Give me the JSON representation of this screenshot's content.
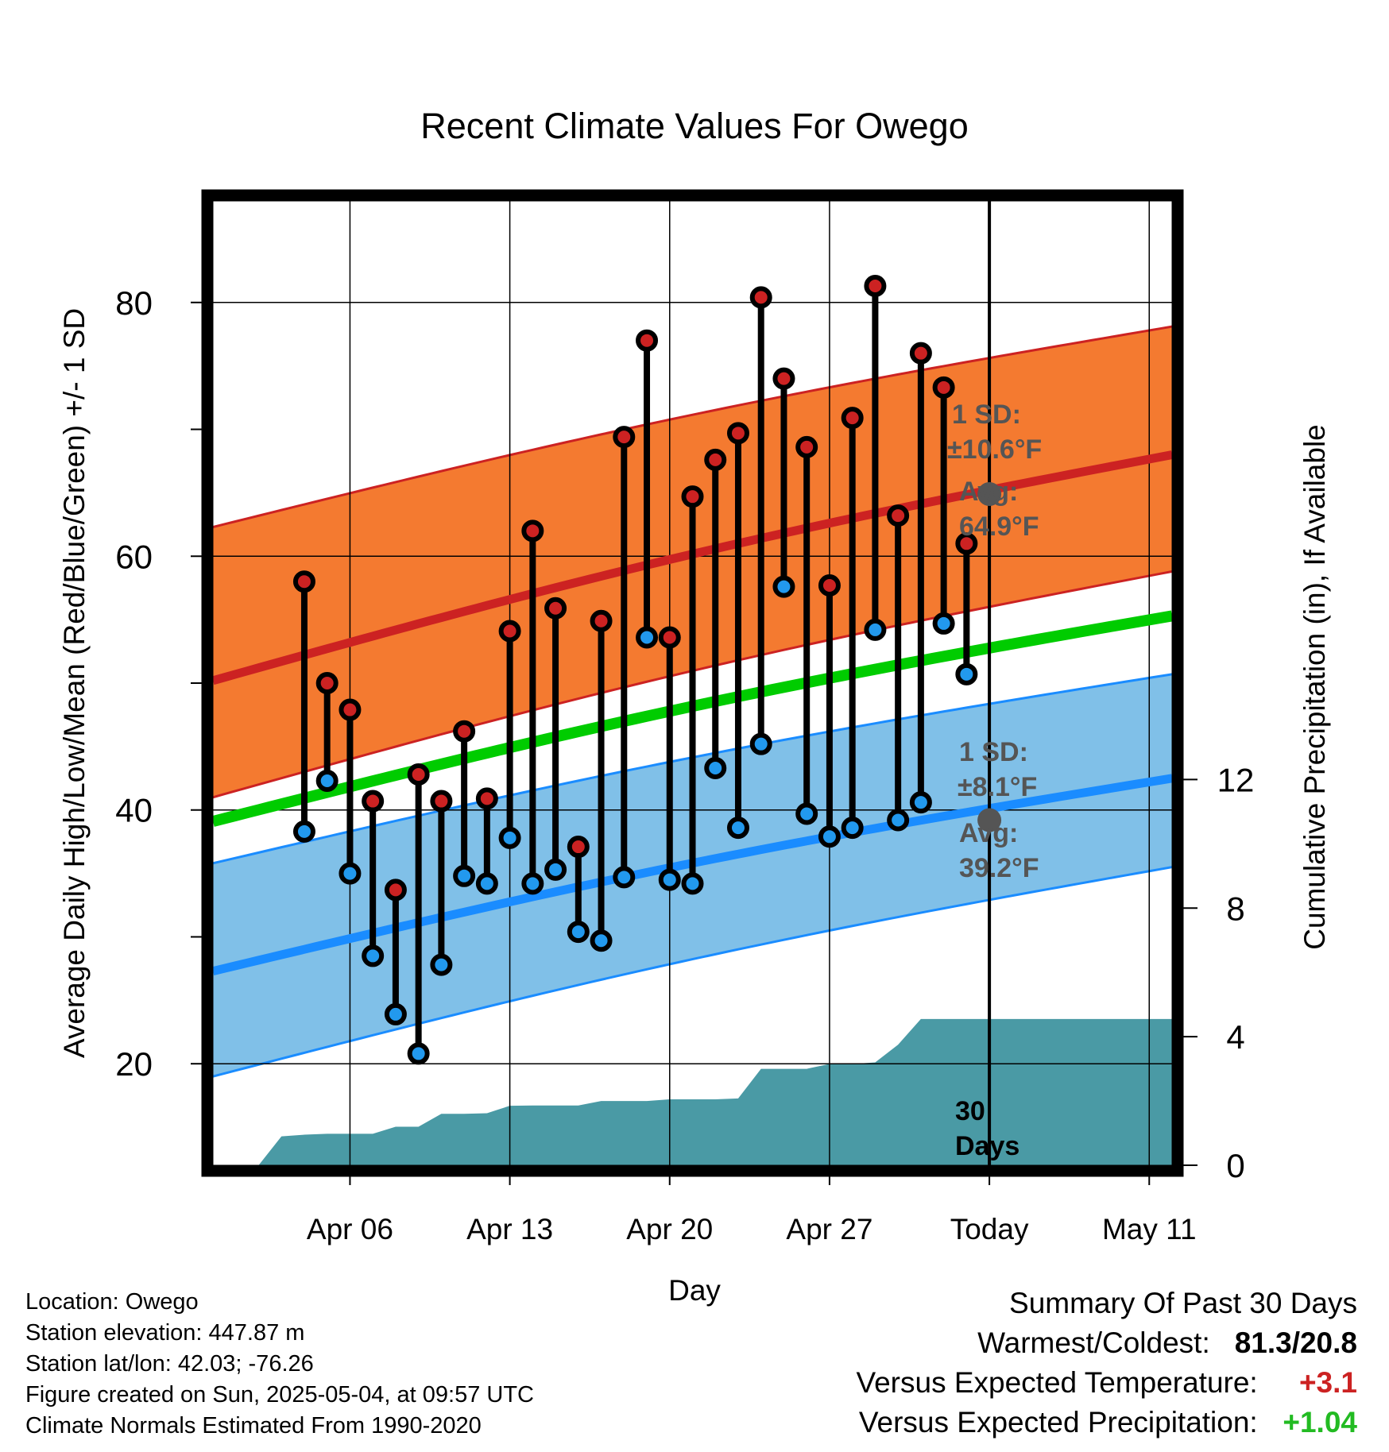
{
  "chart_data": {
    "type": "line",
    "title": "Recent Climate Values For Owego",
    "xlabel": "Day",
    "ylabel": "Average Daily High/Low/Mean (Red/Blue/Green) +/- 1 SD",
    "y2label": "Cumulative Precipitation (in), If Available",
    "x_range_days": [
      -1,
      41
    ],
    "ylim": [
      12,
      88
    ],
    "y2lim": [
      0,
      30
    ],
    "x_ticks": [
      {
        "day": 5,
        "label": "Apr 06"
      },
      {
        "day": 12,
        "label": "Apr 13"
      },
      {
        "day": 19,
        "label": "Apr 20"
      },
      {
        "day": 26,
        "label": "Apr 27"
      },
      {
        "day": 33,
        "label": "Today"
      },
      {
        "day": 40,
        "label": "May 11"
      }
    ],
    "y_ticks": [
      {
        "value": 20,
        "label": "20"
      },
      {
        "value": 30,
        "label": ""
      },
      {
        "value": 40,
        "label": "40"
      },
      {
        "value": 50,
        "label": ""
      },
      {
        "value": 60,
        "label": "60"
      },
      {
        "value": 70,
        "label": ""
      },
      {
        "value": 80,
        "label": "80"
      }
    ],
    "y2_ticks": [
      {
        "value": 0,
        "label": "0"
      },
      {
        "value": 4,
        "label": "4"
      },
      {
        "value": 8,
        "label": "8"
      },
      {
        "value": 12,
        "label": "12"
      }
    ],
    "today_day": 33,
    "daily_observations": {
      "day": [
        3,
        4,
        5,
        6,
        7,
        8,
        9,
        10,
        11,
        12,
        13,
        14,
        15,
        16,
        17,
        18,
        19,
        20,
        21,
        22,
        23,
        24,
        25,
        26,
        27,
        28,
        29,
        30,
        31,
        32
      ],
      "high": [
        58.0,
        50.0,
        47.9,
        40.7,
        33.7,
        42.8,
        40.7,
        46.2,
        40.9,
        54.1,
        62.0,
        55.9,
        37.1,
        54.9,
        69.4,
        77.0,
        53.6,
        64.7,
        67.6,
        69.7,
        80.4,
        74.0,
        68.6,
        57.7,
        70.9,
        81.3,
        63.2,
        76.0,
        73.3,
        61.0
      ],
      "low": [
        38.3,
        42.3,
        35.0,
        28.5,
        23.9,
        20.8,
        27.8,
        34.8,
        34.2,
        37.8,
        34.2,
        35.3,
        30.4,
        29.7,
        34.7,
        53.6,
        34.5,
        34.2,
        43.3,
        38.6,
        45.2,
        57.6,
        39.7,
        37.9,
        38.6,
        54.2,
        39.2,
        40.6,
        54.7,
        50.7
      ]
    },
    "normals": {
      "day": [
        -1,
        41
      ],
      "avg_high": [
        50.2,
        68.0
      ],
      "avg_high_plus_sd": [
        62.3,
        78.1
      ],
      "avg_high_minus_sd": [
        41.0,
        58.8
      ],
      "avg_mean": [
        39.1,
        55.3
      ],
      "avg_low": [
        27.3,
        42.5
      ],
      "avg_low_plus_sd": [
        35.8,
        50.7
      ],
      "avg_low_minus_sd": [
        19.0,
        35.5
      ]
    },
    "cumulative_precipitation": {
      "day": [
        1,
        2,
        3,
        4,
        5,
        6,
        7,
        8,
        9,
        10,
        11,
        12,
        13,
        14,
        15,
        16,
        17,
        18,
        19,
        20,
        21,
        22,
        23,
        24,
        25,
        26,
        27,
        28,
        29,
        30,
        31,
        32,
        33,
        41
      ],
      "inches": [
        0,
        0.9,
        0.95,
        0.98,
        0.98,
        0.98,
        1.2,
        1.2,
        1.6,
        1.6,
        1.62,
        1.85,
        1.86,
        1.86,
        1.86,
        2.0,
        2.0,
        2.0,
        2.05,
        2.05,
        2.05,
        2.08,
        3.0,
        3.0,
        3.0,
        3.15,
        3.15,
        3.2,
        3.75,
        4.55,
        4.55,
        4.55,
        4.55,
        4.55
      ]
    },
    "annotations": {
      "high_sd_label_1": "1 SD:",
      "high_sd_label_2": "±10.6°F",
      "high_avg_label_1": "Avg:",
      "high_avg_label_2": "64.9°F",
      "high_avg_value": 64.9,
      "low_sd_label_1": "1 SD:",
      "low_sd_label_2": "±8.1°F",
      "low_avg_label_1": "Avg:",
      "low_avg_label_2": "39.2°F",
      "low_avg_value": 39.2,
      "period_label_1": "30",
      "period_label_2": "Days"
    },
    "colors": {
      "high_band": "#f47a30",
      "high_line": "#cc2222",
      "low_band": "#80c0e8",
      "low_line": "#1a8cff",
      "mean_line": "#00cc00",
      "precip_fill": "#4a9aa5",
      "high_marker": "#cc2222",
      "low_marker": "#2299ee",
      "annotation_text": "#555555",
      "annotation_dot": "#555555"
    }
  },
  "station_info": {
    "location": "Location: Owego",
    "elevation": "Station elevation: 447.87 m",
    "latlon": "Station lat/lon: 42.03; -76.26",
    "created": "Figure created on Sun, 2025-05-04, at 09:57 UTC",
    "normals": "Climate Normals Estimated From 1990-2020"
  },
  "summary": {
    "title": "Summary Of Past 30 Days",
    "warm_cold_label": "Warmest/Coldest:",
    "warm_cold_value": "81.3/20.8",
    "temp_label": "Versus Expected Temperature:",
    "temp_value": "+3.1",
    "temp_color": "#cc2222",
    "precip_label": "Versus Expected Precipitation:",
    "precip_value": "+1.04",
    "precip_color": "#22bb22"
  }
}
